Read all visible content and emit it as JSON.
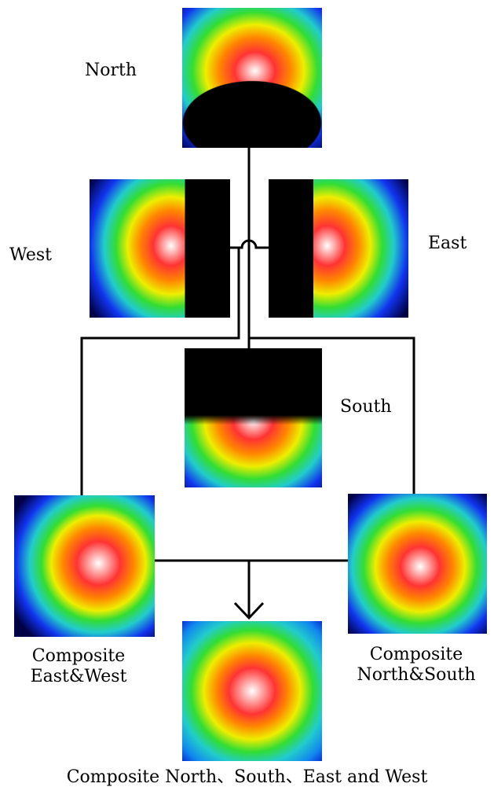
{
  "labels": {
    "north": "North",
    "west": "West",
    "east": "East",
    "south": "South",
    "composite_ew": [
      "Composite",
      "East&West"
    ],
    "composite_ns": [
      "Composite",
      "North&South"
    ],
    "composite_all": "Composite North、South、East and West"
  }
}
